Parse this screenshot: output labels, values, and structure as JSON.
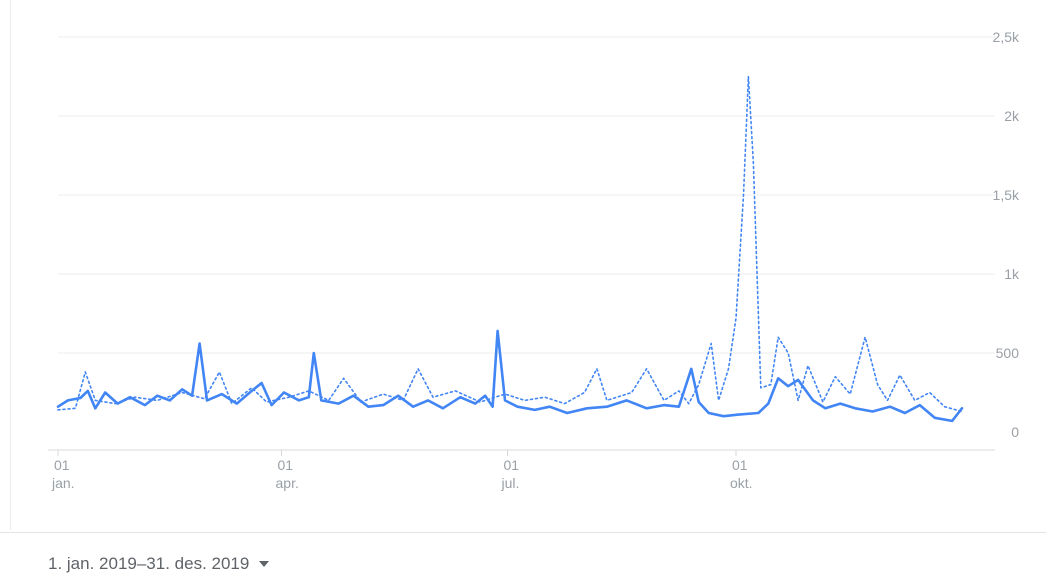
{
  "colors": {
    "line": "#4285f4",
    "grid": "#eeeeee",
    "text": "#9aa0a6",
    "axis": "#d8d8d8"
  },
  "date_selector": {
    "label": "1. jan. 2019–31. des. 2019",
    "icon": "caret-down-icon"
  },
  "chart_data": {
    "type": "line",
    "title": "",
    "xlabel": "",
    "ylabel": "",
    "x_ticks": [
      {
        "day": "01",
        "month": "jan."
      },
      {
        "day": "01",
        "month": "apr."
      },
      {
        "day": "01",
        "month": "jul."
      },
      {
        "day": "01",
        "month": "okt."
      }
    ],
    "y_ticks": [
      "0",
      "500",
      "1k",
      "1,5k",
      "2k",
      "2,5k"
    ],
    "ylim": [
      0,
      2500
    ],
    "grid": true,
    "series": [
      {
        "style": "solid",
        "points": [
          [
            "2019-01-01",
            160
          ],
          [
            "2019-01-05",
            200
          ],
          [
            "2019-01-10",
            215
          ],
          [
            "2019-01-13",
            260
          ],
          [
            "2019-01-16",
            150
          ],
          [
            "2019-01-20",
            250
          ],
          [
            "2019-01-25",
            180
          ],
          [
            "2019-01-30",
            220
          ],
          [
            "2019-02-05",
            170
          ],
          [
            "2019-02-10",
            230
          ],
          [
            "2019-02-15",
            200
          ],
          [
            "2019-02-20",
            270
          ],
          [
            "2019-02-24",
            230
          ],
          [
            "2019-02-27",
            560
          ],
          [
            "2019-03-02",
            200
          ],
          [
            "2019-03-08",
            240
          ],
          [
            "2019-03-14",
            180
          ],
          [
            "2019-03-20",
            260
          ],
          [
            "2019-03-24",
            310
          ],
          [
            "2019-03-28",
            170
          ],
          [
            "2019-04-02",
            250
          ],
          [
            "2019-04-08",
            200
          ],
          [
            "2019-04-12",
            220
          ],
          [
            "2019-04-14",
            500
          ],
          [
            "2019-04-17",
            200
          ],
          [
            "2019-04-24",
            180
          ],
          [
            "2019-04-30",
            230
          ],
          [
            "2019-05-06",
            160
          ],
          [
            "2019-05-12",
            170
          ],
          [
            "2019-05-18",
            230
          ],
          [
            "2019-05-24",
            160
          ],
          [
            "2019-05-30",
            200
          ],
          [
            "2019-06-05",
            150
          ],
          [
            "2019-06-12",
            220
          ],
          [
            "2019-06-18",
            180
          ],
          [
            "2019-06-22",
            230
          ],
          [
            "2019-06-25",
            160
          ],
          [
            "2019-06-27",
            640
          ],
          [
            "2019-06-30",
            200
          ],
          [
            "2019-07-05",
            160
          ],
          [
            "2019-07-12",
            140
          ],
          [
            "2019-07-18",
            160
          ],
          [
            "2019-07-25",
            120
          ],
          [
            "2019-08-02",
            150
          ],
          [
            "2019-08-10",
            160
          ],
          [
            "2019-08-18",
            200
          ],
          [
            "2019-08-26",
            150
          ],
          [
            "2019-09-02",
            170
          ],
          [
            "2019-09-08",
            160
          ],
          [
            "2019-09-13",
            400
          ],
          [
            "2019-09-16",
            190
          ],
          [
            "2019-09-20",
            120
          ],
          [
            "2019-09-26",
            100
          ],
          [
            "2019-10-02",
            110
          ],
          [
            "2019-10-10",
            120
          ],
          [
            "2019-10-14",
            180
          ],
          [
            "2019-10-18",
            340
          ],
          [
            "2019-10-22",
            290
          ],
          [
            "2019-10-26",
            330
          ],
          [
            "2019-11-01",
            200
          ],
          [
            "2019-11-06",
            150
          ],
          [
            "2019-11-12",
            180
          ],
          [
            "2019-11-18",
            150
          ],
          [
            "2019-11-25",
            130
          ],
          [
            "2019-12-02",
            160
          ],
          [
            "2019-12-08",
            120
          ],
          [
            "2019-12-14",
            170
          ],
          [
            "2019-12-20",
            90
          ],
          [
            "2019-12-27",
            70
          ],
          [
            "2019-12-31",
            150
          ]
        ]
      },
      {
        "style": "dotted",
        "points": [
          [
            "2019-01-01",
            140
          ],
          [
            "2019-01-08",
            150
          ],
          [
            "2019-01-12",
            380
          ],
          [
            "2019-01-16",
            200
          ],
          [
            "2019-01-24",
            180
          ],
          [
            "2019-02-01",
            220
          ],
          [
            "2019-02-10",
            200
          ],
          [
            "2019-02-20",
            250
          ],
          [
            "2019-03-01",
            210
          ],
          [
            "2019-03-07",
            380
          ],
          [
            "2019-03-12",
            180
          ],
          [
            "2019-03-20",
            280
          ],
          [
            "2019-03-26",
            190
          ],
          [
            "2019-04-04",
            220
          ],
          [
            "2019-04-12",
            260
          ],
          [
            "2019-04-20",
            200
          ],
          [
            "2019-04-26",
            340
          ],
          [
            "2019-05-03",
            190
          ],
          [
            "2019-05-12",
            240
          ],
          [
            "2019-05-20",
            200
          ],
          [
            "2019-05-26",
            400
          ],
          [
            "2019-06-01",
            220
          ],
          [
            "2019-06-10",
            260
          ],
          [
            "2019-06-20",
            190
          ],
          [
            "2019-06-30",
            240
          ],
          [
            "2019-07-08",
            200
          ],
          [
            "2019-07-16",
            220
          ],
          [
            "2019-07-24",
            180
          ],
          [
            "2019-08-01",
            250
          ],
          [
            "2019-08-06",
            400
          ],
          [
            "2019-08-10",
            200
          ],
          [
            "2019-08-20",
            250
          ],
          [
            "2019-08-26",
            400
          ],
          [
            "2019-09-02",
            200
          ],
          [
            "2019-09-08",
            260
          ],
          [
            "2019-09-12",
            180
          ],
          [
            "2019-09-16",
            300
          ],
          [
            "2019-09-21",
            560
          ],
          [
            "2019-09-24",
            200
          ],
          [
            "2019-09-28",
            400
          ],
          [
            "2019-10-01",
            720
          ],
          [
            "2019-10-04",
            1500
          ],
          [
            "2019-10-06",
            2250
          ],
          [
            "2019-10-08",
            1700
          ],
          [
            "2019-10-11",
            280
          ],
          [
            "2019-10-15",
            300
          ],
          [
            "2019-10-18",
            600
          ],
          [
            "2019-10-22",
            500
          ],
          [
            "2019-10-26",
            200
          ],
          [
            "2019-10-30",
            420
          ],
          [
            "2019-11-05",
            190
          ],
          [
            "2019-11-10",
            350
          ],
          [
            "2019-11-16",
            240
          ],
          [
            "2019-11-22",
            600
          ],
          [
            "2019-11-27",
            300
          ],
          [
            "2019-12-01",
            200
          ],
          [
            "2019-12-06",
            360
          ],
          [
            "2019-12-12",
            200
          ],
          [
            "2019-12-18",
            250
          ],
          [
            "2019-12-24",
            160
          ],
          [
            "2019-12-31",
            130
          ]
        ]
      }
    ]
  }
}
